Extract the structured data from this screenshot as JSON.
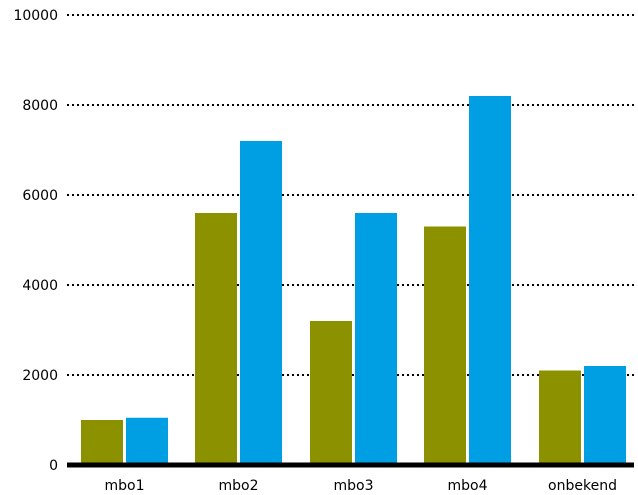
{
  "chart_data": {
    "type": "bar",
    "categories": [
      "mbo1",
      "mbo2",
      "mbo3",
      "mbo4",
      "onbekend"
    ],
    "series": [
      {
        "values": [
          1000,
          5600,
          3200,
          5300,
          2100
        ]
      },
      {
        "values": [
          1050,
          7200,
          5600,
          8200,
          2200
        ]
      }
    ],
    "title": "",
    "xlabel": "",
    "ylabel": "",
    "ylim": [
      0,
      10000
    ],
    "yticks": [
      0,
      2000,
      4000,
      6000,
      8000,
      10000
    ],
    "yticklabels": [
      "0",
      "2000",
      "4000",
      "6000",
      "8000",
      "10000"
    ],
    "grid": true,
    "legend": false,
    "colors": [
      "#8c9100",
      "#009fe3"
    ]
  }
}
